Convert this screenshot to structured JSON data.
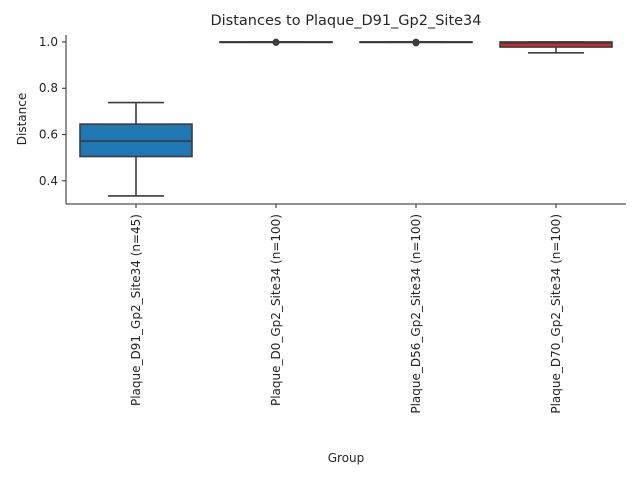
{
  "chart_data": {
    "type": "box",
    "title": "Distances to Plaque_D91_Gp2_Site34",
    "xlabel": "Group",
    "ylabel": "Distance",
    "ylim": [
      0.3,
      1.03
    ],
    "yticks": [
      0.4,
      0.6,
      0.8,
      1.0
    ],
    "ytick_labels": [
      "0.4",
      "0.6",
      "0.8",
      "1.0"
    ],
    "grid": false,
    "categories": [
      "Plaque_D91_Gp2_Site34 (n=45)",
      "Plaque_D0_Gp2_Site34 (n=100)",
      "Plaque_D56_Gp2_Site34 (n=100)",
      "Plaque_D70_Gp2_Site34 (n=100)"
    ],
    "boxes": [
      {
        "whislo": 0.335,
        "q1": 0.505,
        "med": 0.572,
        "q3": 0.645,
        "whishi": 0.738,
        "fliers": [],
        "color": "#1f77b4"
      },
      {
        "whislo": 1.0,
        "q1": 1.0,
        "med": 1.0,
        "q3": 1.0,
        "whishi": 1.0,
        "fliers": [
          0.999,
          0.998
        ],
        "color": "#ff7f0e"
      },
      {
        "whislo": 1.0,
        "q1": 1.0,
        "med": 1.0,
        "q3": 1.0,
        "whishi": 1.0,
        "fliers": [
          0.999,
          0.998,
          0.997,
          0.996
        ],
        "color": "#2ca02c"
      },
      {
        "whislo": 0.953,
        "q1": 0.978,
        "med": 0.995,
        "q3": 1.0,
        "whishi": 1.0,
        "fliers": [],
        "color": "#d62728"
      }
    ]
  }
}
